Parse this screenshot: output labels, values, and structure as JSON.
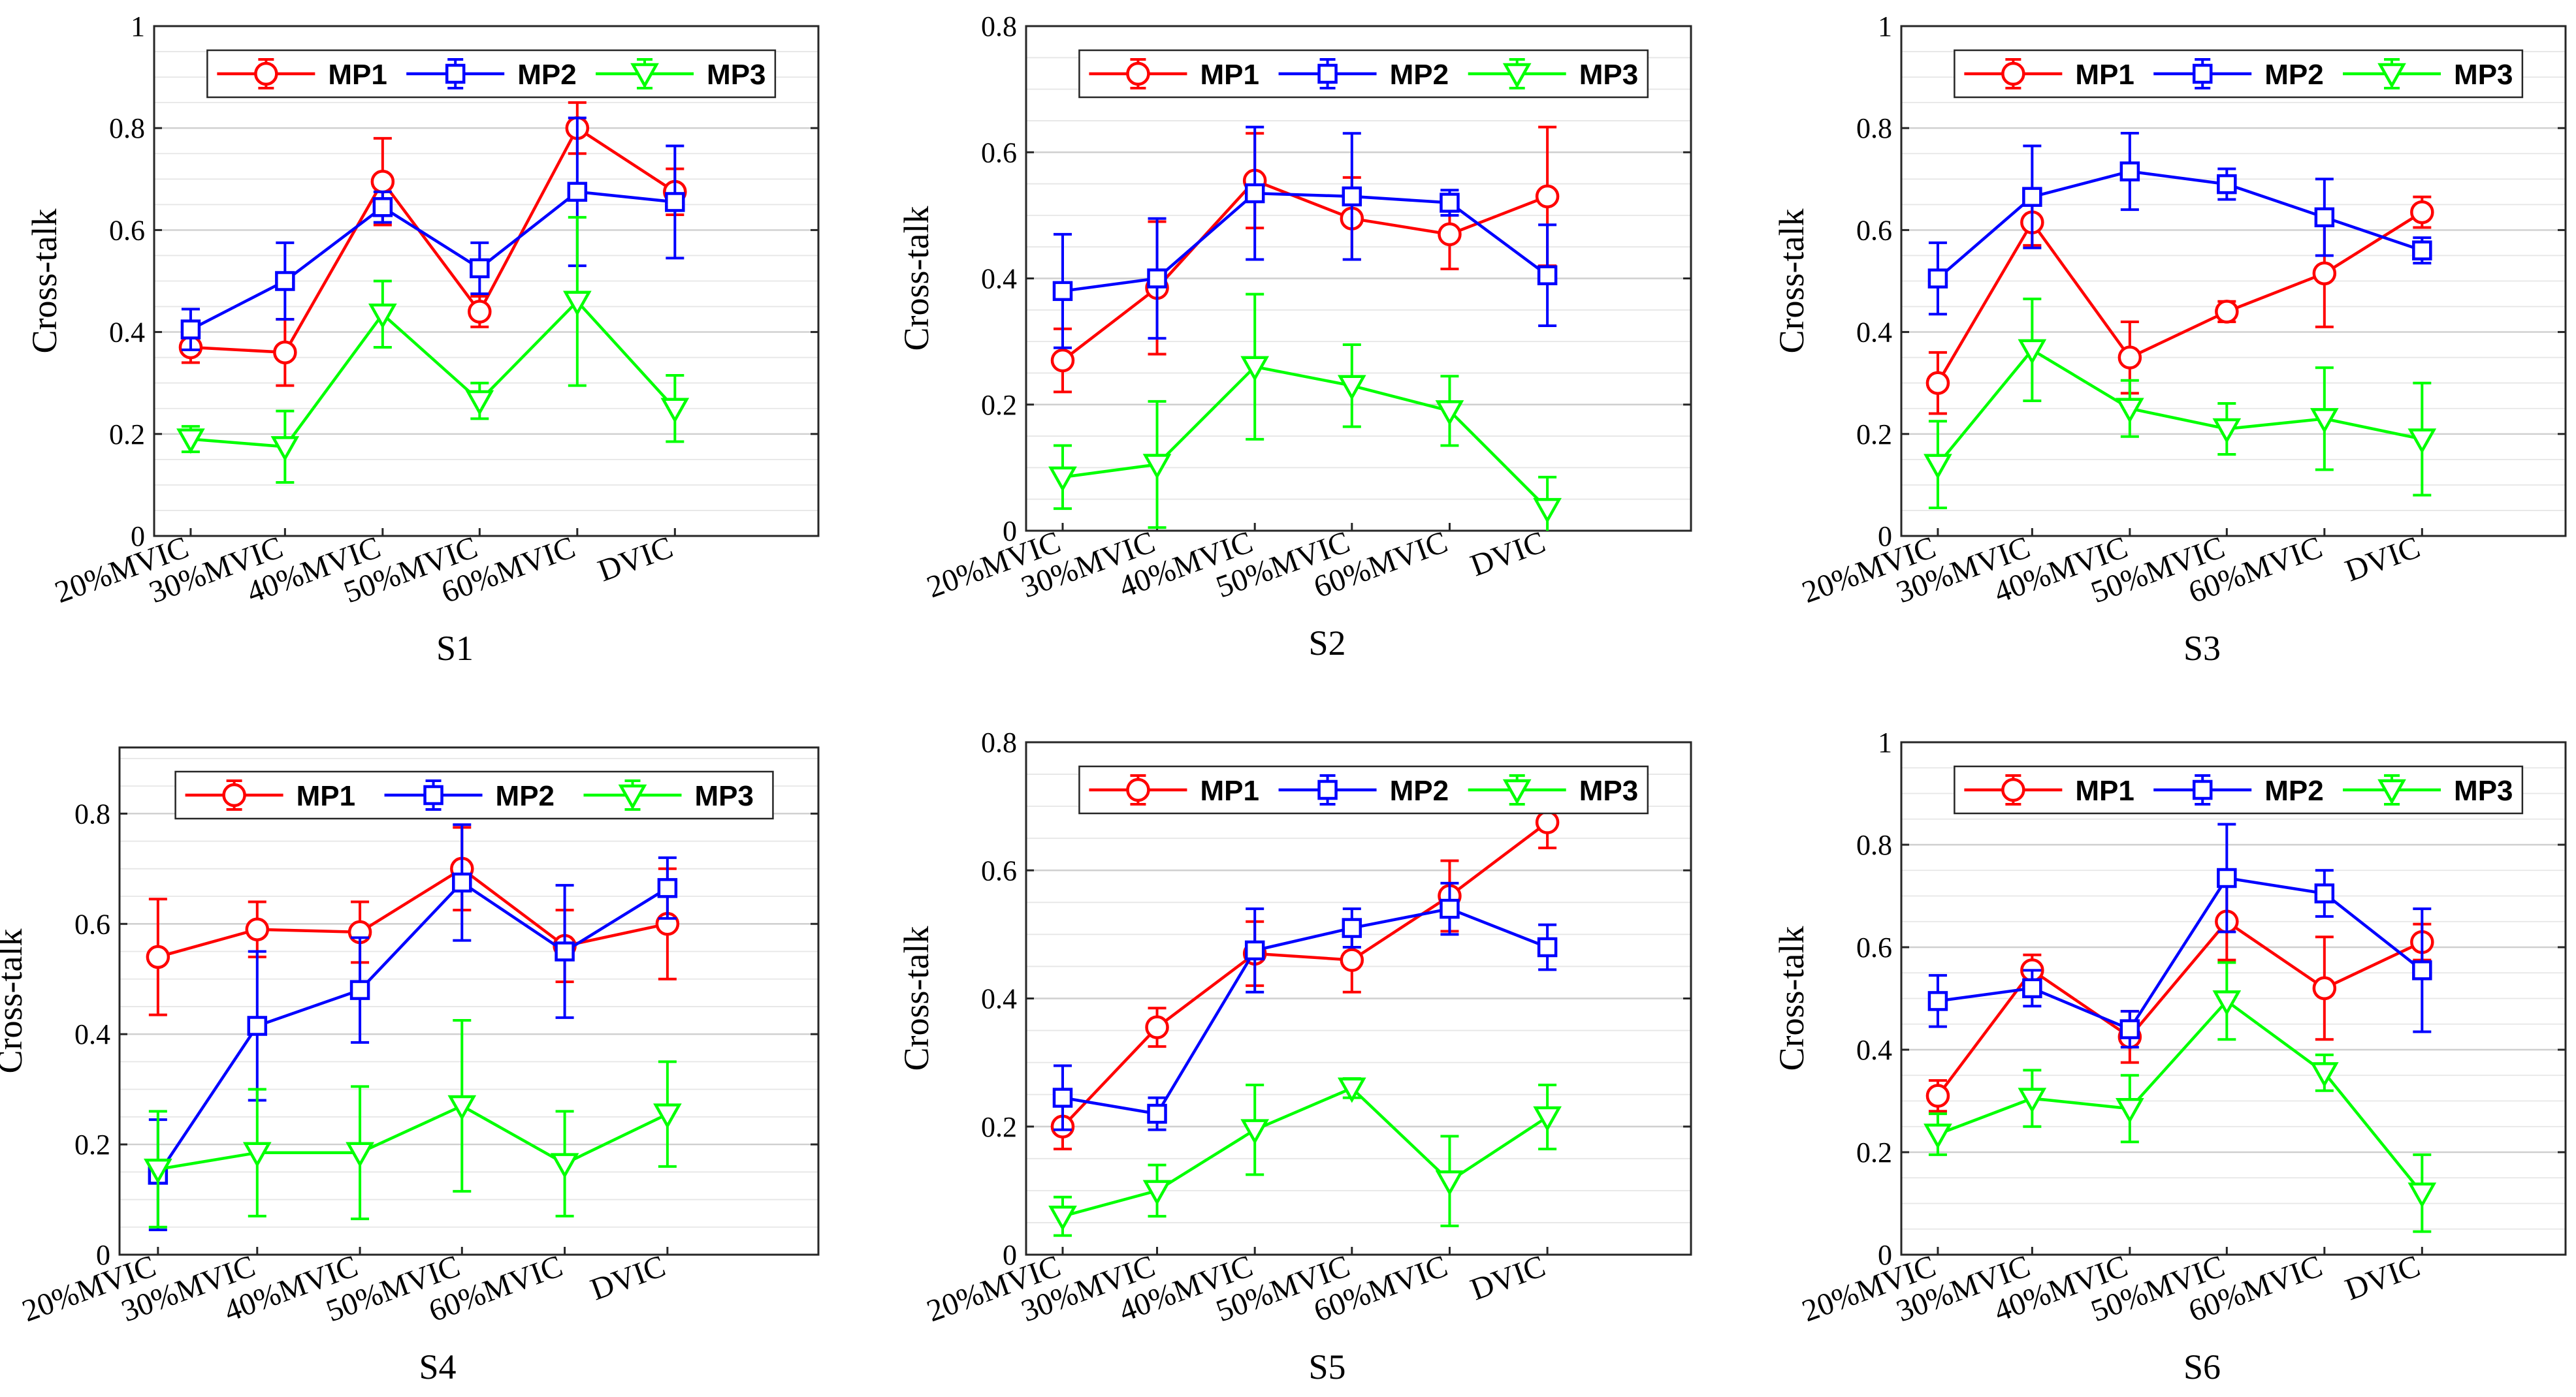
{
  "chart_data": [
    {
      "type": "line",
      "title": "",
      "xlabel": "S1",
      "ylabel": "Cross-talk",
      "ylim": [
        0,
        1
      ],
      "yticks": [
        0,
        0.2,
        0.4,
        0.6,
        0.8,
        1
      ],
      "ytick_labels": [
        "0",
        "0.2",
        "0.4",
        "0.6",
        "0.8",
        "1"
      ],
      "categories": [
        "20%MVIC",
        "30%MVIC",
        "40%MVIC",
        "50%MVIC",
        "60%MVIC",
        "DVIC"
      ],
      "grid": true,
      "legend": "top",
      "series": [
        {
          "name": "MP1",
          "color": "#ff0000",
          "marker": "circle",
          "values": [
            0.37,
            0.36,
            0.695,
            0.44,
            0.8,
            0.675
          ],
          "err": [
            0.03,
            0.065,
            0.085,
            0.03,
            0.05,
            0.045
          ]
        },
        {
          "name": "MP2",
          "color": "#0000ff",
          "marker": "square",
          "values": [
            0.405,
            0.5,
            0.645,
            0.525,
            0.675,
            0.655
          ],
          "err": [
            0.04,
            0.075,
            0.03,
            0.05,
            0.145,
            0.11
          ]
        },
        {
          "name": "MP3",
          "color": "#00ff00",
          "marker": "triangle-down",
          "values": [
            0.19,
            0.175,
            0.435,
            0.265,
            0.46,
            0.25
          ],
          "err": [
            0.025,
            0.07,
            0.065,
            0.035,
            0.165,
            0.065
          ]
        }
      ]
    },
    {
      "type": "line",
      "title": "",
      "xlabel": "S2",
      "ylabel": "Cross-talk",
      "ylim": [
        0,
        0.8
      ],
      "yticks": [
        0,
        0.2,
        0.4,
        0.6,
        0.8
      ],
      "ytick_labels": [
        "0",
        "0.2",
        "0.4",
        "0.6",
        "0.8"
      ],
      "categories": [
        "20%MVIC",
        "30%MVIC",
        "40%MVIC",
        "50%MVIC",
        "60%MVIC",
        "DVIC"
      ],
      "grid": true,
      "legend": "top",
      "series": [
        {
          "name": "MP1",
          "color": "#ff0000",
          "marker": "circle",
          "values": [
            0.27,
            0.385,
            0.555,
            0.495,
            0.47,
            0.53
          ],
          "err": [
            0.05,
            0.105,
            0.075,
            0.065,
            0.055,
            0.11
          ]
        },
        {
          "name": "MP2",
          "color": "#0000ff",
          "marker": "square",
          "values": [
            0.38,
            0.4,
            0.535,
            0.53,
            0.52,
            0.405
          ],
          "err": [
            0.09,
            0.095,
            0.105,
            0.1,
            0.02,
            0.08
          ]
        },
        {
          "name": "MP3",
          "color": "#00ff00",
          "marker": "triangle-down",
          "values": [
            0.085,
            0.105,
            0.26,
            0.23,
            0.19,
            0.035
          ],
          "err": [
            0.05,
            0.1,
            0.115,
            0.065,
            0.055,
            0.05
          ]
        }
      ]
    },
    {
      "type": "line",
      "title": "",
      "xlabel": "S3",
      "ylabel": "Cross-talk",
      "ylim": [
        0,
        1
      ],
      "yticks": [
        0,
        0.2,
        0.4,
        0.6,
        0.8,
        1
      ],
      "ytick_labels": [
        "0",
        "0.2",
        "0.4",
        "0.6",
        "0.8",
        "1"
      ],
      "categories": [
        "20%MVIC",
        "30%MVIC",
        "40%MVIC",
        "50%MVIC",
        "60%MVIC",
        "DVIC"
      ],
      "grid": true,
      "legend": "top",
      "series": [
        {
          "name": "MP1",
          "color": "#ff0000",
          "marker": "circle",
          "values": [
            0.3,
            0.615,
            0.35,
            0.44,
            0.515,
            0.635
          ],
          "err": [
            0.06,
            0.045,
            0.07,
            0.02,
            0.105,
            0.03
          ]
        },
        {
          "name": "MP2",
          "color": "#0000ff",
          "marker": "square",
          "values": [
            0.505,
            0.665,
            0.715,
            0.69,
            0.625,
            0.56
          ],
          "err": [
            0.07,
            0.1,
            0.075,
            0.03,
            0.075,
            0.025
          ]
        },
        {
          "name": "MP3",
          "color": "#00ff00",
          "marker": "triangle-down",
          "values": [
            0.14,
            0.365,
            0.25,
            0.21,
            0.23,
            0.19
          ],
          "err": [
            0.085,
            0.1,
            0.055,
            0.05,
            0.1,
            0.11
          ]
        }
      ]
    },
    {
      "type": "line",
      "title": "",
      "xlabel": "S4",
      "ylabel": "Cross-talk",
      "ylim": [
        0,
        0.92
      ],
      "yticks": [
        0,
        0.2,
        0.4,
        0.6,
        0.8
      ],
      "ytick_labels": [
        "0",
        "0.2",
        "0.4",
        "0.6",
        "0.8"
      ],
      "categories": [
        "20%MVIC",
        "30%MVIC",
        "40%MVIC",
        "50%MVIC",
        "60%MVIC",
        "DVIC"
      ],
      "grid": true,
      "legend": "top",
      "series": [
        {
          "name": "MP1",
          "color": "#ff0000",
          "marker": "circle",
          "values": [
            0.54,
            0.59,
            0.585,
            0.7,
            0.56,
            0.6
          ],
          "err": [
            0.105,
            0.05,
            0.055,
            0.075,
            0.065,
            0.1
          ]
        },
        {
          "name": "MP2",
          "color": "#0000ff",
          "marker": "square",
          "values": [
            0.145,
            0.415,
            0.48,
            0.675,
            0.55,
            0.665
          ],
          "err": [
            0.1,
            0.135,
            0.095,
            0.105,
            0.12,
            0.055
          ]
        },
        {
          "name": "MP3",
          "color": "#00ff00",
          "marker": "triangle-down",
          "values": [
            0.155,
            0.185,
            0.185,
            0.27,
            0.165,
            0.255
          ],
          "err": [
            0.105,
            0.115,
            0.12,
            0.155,
            0.095,
            0.095
          ]
        }
      ]
    },
    {
      "type": "line",
      "title": "",
      "xlabel": "S5",
      "ylabel": "Cross-talk",
      "ylim": [
        0,
        0.8
      ],
      "yticks": [
        0,
        0.2,
        0.4,
        0.6,
        0.8
      ],
      "ytick_labels": [
        "0",
        "0.2",
        "0.4",
        "0.6",
        "0.8"
      ],
      "categories": [
        "20%MVIC",
        "30%MVIC",
        "40%MVIC",
        "50%MVIC",
        "60%MVIC",
        "DVIC"
      ],
      "grid": true,
      "legend": "top",
      "series": [
        {
          "name": "MP1",
          "color": "#ff0000",
          "marker": "circle",
          "values": [
            0.2,
            0.355,
            0.47,
            0.46,
            0.56,
            0.675
          ],
          "err": [
            0.035,
            0.03,
            0.05,
            0.05,
            0.055,
            0.04
          ]
        },
        {
          "name": "MP2",
          "color": "#0000ff",
          "marker": "square",
          "values": [
            0.245,
            0.22,
            0.475,
            0.51,
            0.54,
            0.48
          ],
          "err": [
            0.05,
            0.025,
            0.065,
            0.03,
            0.04,
            0.035
          ]
        },
        {
          "name": "MP3",
          "color": "#00ff00",
          "marker": "triangle-down",
          "values": [
            0.06,
            0.1,
            0.195,
            0.26,
            0.115,
            0.215
          ],
          "err": [
            0.03,
            0.04,
            0.07,
            0.015,
            0.07,
            0.05
          ]
        }
      ]
    },
    {
      "type": "line",
      "title": "",
      "xlabel": "S6",
      "ylabel": "Cross-talk",
      "ylim": [
        0,
        1
      ],
      "yticks": [
        0,
        0.2,
        0.4,
        0.6,
        0.8,
        1
      ],
      "ytick_labels": [
        "0",
        "0.2",
        "0.4",
        "0.6",
        "0.8",
        "1"
      ],
      "categories": [
        "20%MVIC",
        "30%MVIC",
        "40%MVIC",
        "50%MVIC",
        "60%MVIC",
        "DVIC"
      ],
      "grid": true,
      "legend": "top",
      "series": [
        {
          "name": "MP1",
          "color": "#ff0000",
          "marker": "circle",
          "values": [
            0.31,
            0.555,
            0.425,
            0.65,
            0.52,
            0.61
          ],
          "err": [
            0.03,
            0.03,
            0.05,
            0.075,
            0.1,
            0.035
          ]
        },
        {
          "name": "MP2",
          "color": "#0000ff",
          "marker": "square",
          "values": [
            0.495,
            0.52,
            0.44,
            0.735,
            0.705,
            0.555
          ],
          "err": [
            0.05,
            0.035,
            0.035,
            0.105,
            0.045,
            0.12
          ]
        },
        {
          "name": "MP3",
          "color": "#00ff00",
          "marker": "triangle-down",
          "values": [
            0.235,
            0.305,
            0.285,
            0.495,
            0.355,
            0.12
          ],
          "err": [
            0.04,
            0.055,
            0.065,
            0.075,
            0.035,
            0.075
          ]
        }
      ]
    }
  ]
}
